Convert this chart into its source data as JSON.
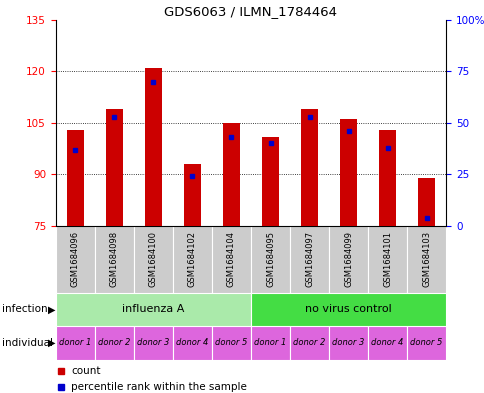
{
  "title": "GDS6063 / ILMN_1784464",
  "samples": [
    "GSM1684096",
    "GSM1684098",
    "GSM1684100",
    "GSM1684102",
    "GSM1684104",
    "GSM1684095",
    "GSM1684097",
    "GSM1684099",
    "GSM1684101",
    "GSM1684103"
  ],
  "counts": [
    103,
    109,
    121,
    93,
    105,
    101,
    109,
    106,
    103,
    89
  ],
  "percentile_ranks": [
    37,
    53,
    70,
    24,
    43,
    40,
    53,
    46,
    38,
    4
  ],
  "ylim_left": [
    75,
    135
  ],
  "ylim_right": [
    0,
    100
  ],
  "yticks_left": [
    75,
    90,
    105,
    120,
    135
  ],
  "yticks_right": [
    0,
    25,
    50,
    75,
    100
  ],
  "bar_color": "#cc0000",
  "marker_color": "#0000cc",
  "bar_bottom": 75,
  "infection_groups": [
    {
      "label": "influenza A",
      "start": 0,
      "end": 5,
      "color": "#aaeaaa"
    },
    {
      "label": "no virus control",
      "start": 5,
      "end": 10,
      "color": "#44dd44"
    }
  ],
  "individual_labels": [
    "donor 1",
    "donor 2",
    "donor 3",
    "donor 4",
    "donor 5",
    "donor 1",
    "donor 2",
    "donor 3",
    "donor 4",
    "donor 5"
  ],
  "individual_color": "#dd66dd",
  "sample_bg_color": "#cccccc",
  "bar_width": 0.45,
  "infection_row_label": "infection",
  "individual_row_label": "individual",
  "legend_count_color": "#cc0000",
  "legend_percentile_color": "#0000cc",
  "right_tick_labels": [
    "0",
    "25",
    "50",
    "75",
    "100%"
  ]
}
